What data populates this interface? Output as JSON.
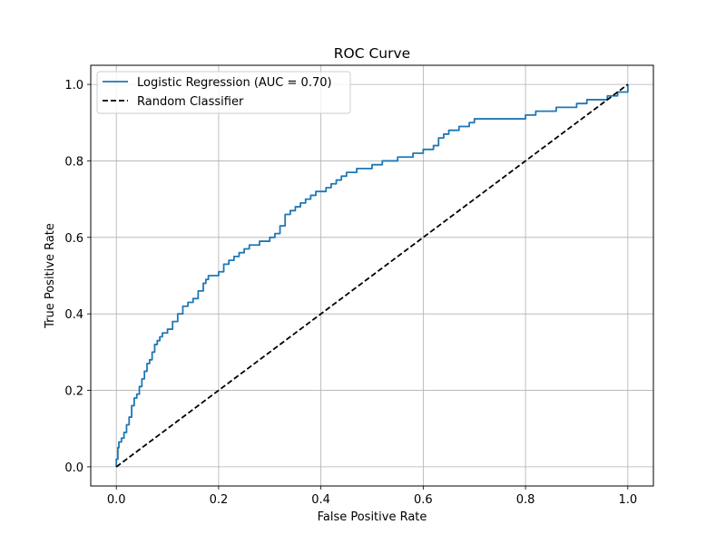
{
  "chart_data": {
    "type": "line",
    "title": "ROC Curve",
    "xlabel": "False Positive Rate",
    "ylabel": "True Positive Rate",
    "xlim": [
      -0.05,
      1.05
    ],
    "ylim": [
      -0.05,
      1.05
    ],
    "grid": true,
    "legend_position": "top-left",
    "x_ticks": [
      0.0,
      0.2,
      0.4,
      0.6,
      0.8,
      1.0
    ],
    "x_tick_labels": [
      "0.0",
      "0.2",
      "0.4",
      "0.6",
      "0.8",
      "1.0"
    ],
    "y_ticks": [
      0.0,
      0.2,
      0.4,
      0.6,
      0.8,
      1.0
    ],
    "y_tick_labels": [
      "0.0",
      "0.2",
      "0.4",
      "0.6",
      "0.8",
      "1.0"
    ],
    "series": [
      {
        "name": "Logistic Regression (AUC = 0.70)",
        "color": "#1f77b4",
        "style": "solid",
        "step": true,
        "x": [
          0.0,
          0.0,
          0.003,
          0.005,
          0.01,
          0.015,
          0.02,
          0.025,
          0.03,
          0.035,
          0.04,
          0.045,
          0.05,
          0.055,
          0.06,
          0.065,
          0.07,
          0.075,
          0.08,
          0.085,
          0.09,
          0.1,
          0.11,
          0.12,
          0.13,
          0.14,
          0.15,
          0.16,
          0.17,
          0.175,
          0.18,
          0.185,
          0.19,
          0.2,
          0.21,
          0.22,
          0.23,
          0.24,
          0.25,
          0.26,
          0.27,
          0.28,
          0.29,
          0.3,
          0.31,
          0.32,
          0.33,
          0.34,
          0.35,
          0.36,
          0.37,
          0.38,
          0.39,
          0.4,
          0.41,
          0.42,
          0.43,
          0.44,
          0.45,
          0.46,
          0.47,
          0.48,
          0.5,
          0.52,
          0.54,
          0.55,
          0.56,
          0.58,
          0.6,
          0.61,
          0.62,
          0.63,
          0.64,
          0.65,
          0.66,
          0.67,
          0.68,
          0.69,
          0.7,
          0.72,
          0.75,
          0.78,
          0.8,
          0.82,
          0.84,
          0.86,
          0.88,
          0.9,
          0.92,
          0.94,
          0.96,
          0.98,
          1.0
        ],
        "y": [
          0.0,
          0.02,
          0.05,
          0.065,
          0.075,
          0.09,
          0.11,
          0.13,
          0.16,
          0.18,
          0.19,
          0.21,
          0.23,
          0.25,
          0.27,
          0.28,
          0.3,
          0.32,
          0.33,
          0.34,
          0.35,
          0.36,
          0.38,
          0.4,
          0.42,
          0.43,
          0.44,
          0.46,
          0.48,
          0.49,
          0.5,
          0.5,
          0.5,
          0.51,
          0.53,
          0.54,
          0.55,
          0.56,
          0.57,
          0.58,
          0.58,
          0.59,
          0.59,
          0.6,
          0.61,
          0.63,
          0.66,
          0.67,
          0.68,
          0.69,
          0.7,
          0.71,
          0.72,
          0.72,
          0.73,
          0.74,
          0.75,
          0.76,
          0.77,
          0.77,
          0.78,
          0.78,
          0.79,
          0.8,
          0.8,
          0.81,
          0.81,
          0.82,
          0.83,
          0.83,
          0.84,
          0.86,
          0.87,
          0.88,
          0.88,
          0.89,
          0.89,
          0.9,
          0.91,
          0.91,
          0.91,
          0.91,
          0.92,
          0.93,
          0.93,
          0.94,
          0.94,
          0.95,
          0.96,
          0.96,
          0.97,
          0.98,
          1.0
        ]
      },
      {
        "name": "Random Classifier",
        "color": "#000000",
        "style": "dashed",
        "step": false,
        "x": [
          0.0,
          1.0
        ],
        "y": [
          0.0,
          1.0
        ]
      }
    ]
  }
}
